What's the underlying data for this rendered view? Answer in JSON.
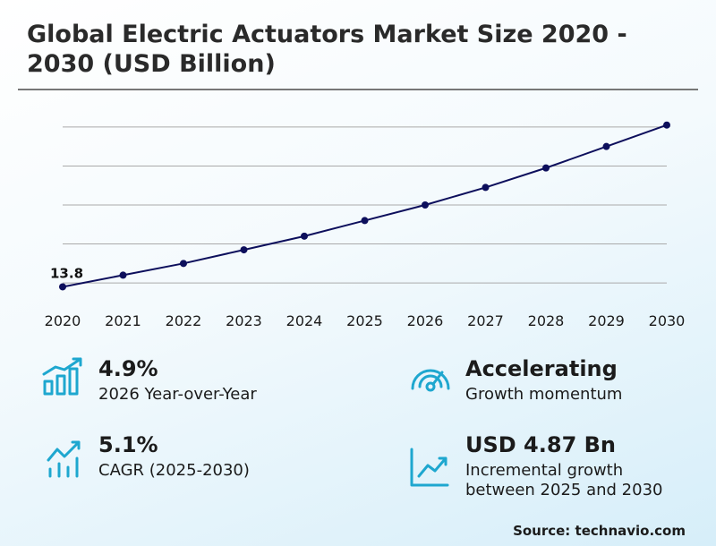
{
  "chart_data": {
    "type": "line",
    "title": "Global Electric Actuators Market Size 2020 - 2030 (USD Billion)",
    "categories": [
      "2020",
      "2021",
      "2022",
      "2023",
      "2024",
      "2025",
      "2026",
      "2027",
      "2028",
      "2029",
      "2030"
    ],
    "values": [
      13.8,
      14.4,
      15.0,
      15.7,
      16.4,
      17.2,
      18.0,
      18.9,
      19.9,
      21.0,
      22.1
    ],
    "color": "#0d0f5c",
    "ylim": [
      13.5,
      22.5
    ],
    "yticks": [
      14,
      16,
      18,
      20,
      22
    ],
    "grid": true
  },
  "kpis": [
    {
      "value": "4.9%",
      "label": "2026 Year-over-Year"
    },
    {
      "value": "Accelerating",
      "label": "Growth momentum"
    },
    {
      "value": "5.1%",
      "label": "CAGR (2025-2030)"
    },
    {
      "value": "USD 4.87 Bn",
      "label": "Incremental growth between 2025 and 2030"
    }
  ],
  "source": "Source: technavio.com"
}
